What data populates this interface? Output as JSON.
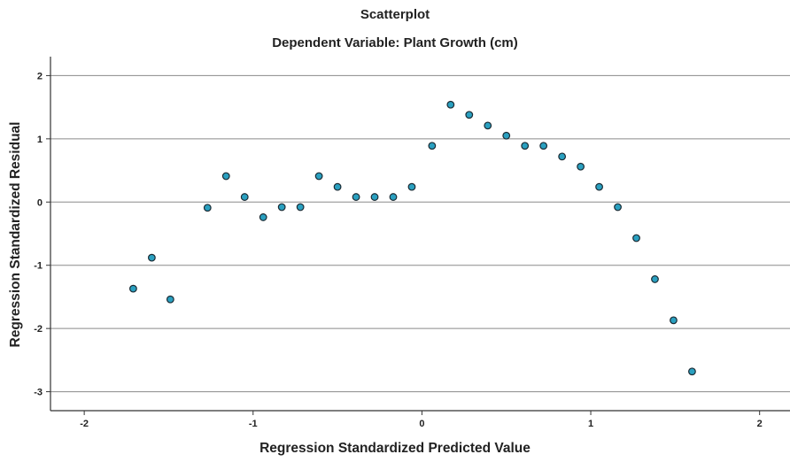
{
  "chart_data": {
    "type": "scatter",
    "title": "Scatterplot",
    "subtitle": "Dependent Variable: Plant Growth (cm)",
    "xlabel": "Regression Standardized Predicted Value",
    "ylabel": "Regression Standardized Residual",
    "xlim": [
      -2.2,
      2.18
    ],
    "ylim": [
      -3.3,
      2.3
    ],
    "xticks": [
      -2,
      -1,
      0,
      1,
      2
    ],
    "yticks": [
      2,
      1,
      0,
      -1,
      -2,
      -3
    ],
    "grid": "horizontal",
    "point_color": "#2aa0c0",
    "points": [
      {
        "x": -1.71,
        "y": -1.37
      },
      {
        "x": -1.6,
        "y": -0.88
      },
      {
        "x": -1.49,
        "y": -1.54
      },
      {
        "x": -1.27,
        "y": -0.09
      },
      {
        "x": -1.16,
        "y": 0.41
      },
      {
        "x": -1.05,
        "y": 0.08
      },
      {
        "x": -0.94,
        "y": -0.24
      },
      {
        "x": -0.83,
        "y": -0.08
      },
      {
        "x": -0.72,
        "y": -0.08
      },
      {
        "x": -0.61,
        "y": 0.41
      },
      {
        "x": -0.5,
        "y": 0.24
      },
      {
        "x": -0.39,
        "y": 0.08
      },
      {
        "x": -0.28,
        "y": 0.08
      },
      {
        "x": -0.17,
        "y": 0.08
      },
      {
        "x": -0.06,
        "y": 0.24
      },
      {
        "x": 0.06,
        "y": 0.89
      },
      {
        "x": 0.17,
        "y": 1.54
      },
      {
        "x": 0.28,
        "y": 1.38
      },
      {
        "x": 0.39,
        "y": 1.21
      },
      {
        "x": 0.5,
        "y": 1.05
      },
      {
        "x": 0.61,
        "y": 0.89
      },
      {
        "x": 0.72,
        "y": 0.89
      },
      {
        "x": 0.83,
        "y": 0.72
      },
      {
        "x": 0.94,
        "y": 0.56
      },
      {
        "x": 1.05,
        "y": 0.24
      },
      {
        "x": 1.16,
        "y": -0.08
      },
      {
        "x": 1.27,
        "y": -0.57
      },
      {
        "x": 1.38,
        "y": -1.22
      },
      {
        "x": 1.49,
        "y": -1.87
      },
      {
        "x": 1.6,
        "y": -2.68
      }
    ]
  }
}
